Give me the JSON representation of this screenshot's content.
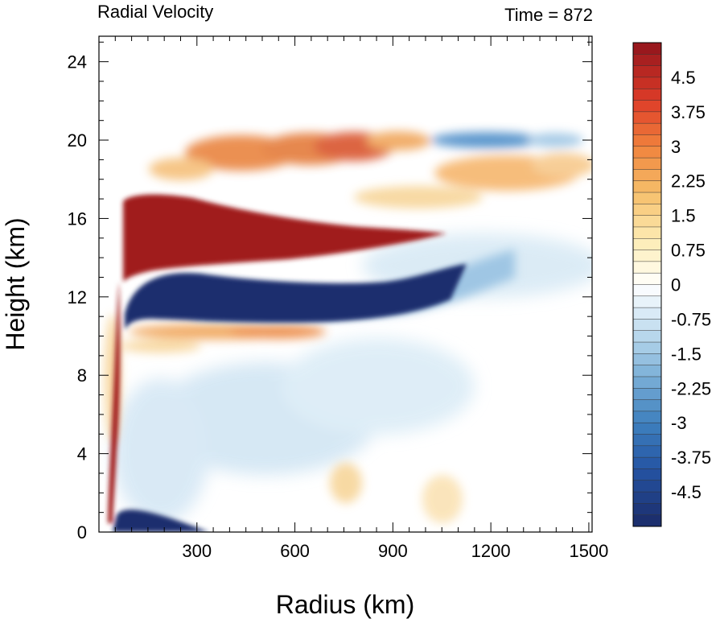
{
  "chart_data": {
    "type": "heatmap",
    "title_left": "Radial Velocity",
    "title_right": "Time = 872",
    "xlabel": "Radius (km)",
    "ylabel": "Height (km)",
    "xlim": [
      0,
      1510
    ],
    "ylim": [
      0,
      25.3
    ],
    "xticks": [
      300,
      600,
      900,
      1200,
      1500
    ],
    "xtick_labels": [
      "300",
      "600",
      "900",
      "1200",
      "1500"
    ],
    "yticks": [
      0,
      4,
      8,
      12,
      16,
      20,
      24
    ],
    "ytick_labels": [
      "0",
      "4",
      "8",
      "12",
      "16",
      "20",
      "24"
    ],
    "colorbar": {
      "min": -5.25,
      "max": 5.25,
      "step": 0.25,
      "labels": [
        "4.5",
        "3.75",
        "3",
        "2.25",
        "1.5",
        "0.75",
        "0",
        "-0.75",
        "-1.5",
        "-2.25",
        "-3",
        "-3.75",
        "-4.5"
      ],
      "label_values": [
        4.5,
        3.75,
        3,
        2.25,
        1.5,
        0.75,
        0,
        -0.75,
        -1.5,
        -2.25,
        -3,
        -3.75,
        -4.5
      ]
    },
    "features": [
      {
        "region": "upper outflow",
        "radius_km": [
          80,
          1060
        ],
        "height_km": [
          13.5,
          17.2
        ],
        "value": 5.25
      },
      {
        "region": "inflow below outflow",
        "radius_km": [
          80,
          900
        ],
        "height_km": [
          10.5,
          13.5
        ],
        "value": -5.25
      },
      {
        "region": "low-level inflow",
        "radius_km": [
          55,
          250
        ],
        "height_km": [
          0,
          1.3
        ],
        "value": -5.25
      },
      {
        "region": "eyewall outflow",
        "radius_km": [
          50,
          75
        ],
        "height_km": [
          0.5,
          7
        ],
        "value": 5.25
      },
      {
        "region": "upper level outflow band",
        "radius_km": [
          180,
          900
        ],
        "height_km": [
          18.5,
          20.5
        ],
        "value": 3
      },
      {
        "region": "outer inflow band",
        "radius_km": [
          1030,
          1480
        ],
        "height_km": [
          19.8,
          20.5
        ],
        "value": -3
      }
    ]
  }
}
